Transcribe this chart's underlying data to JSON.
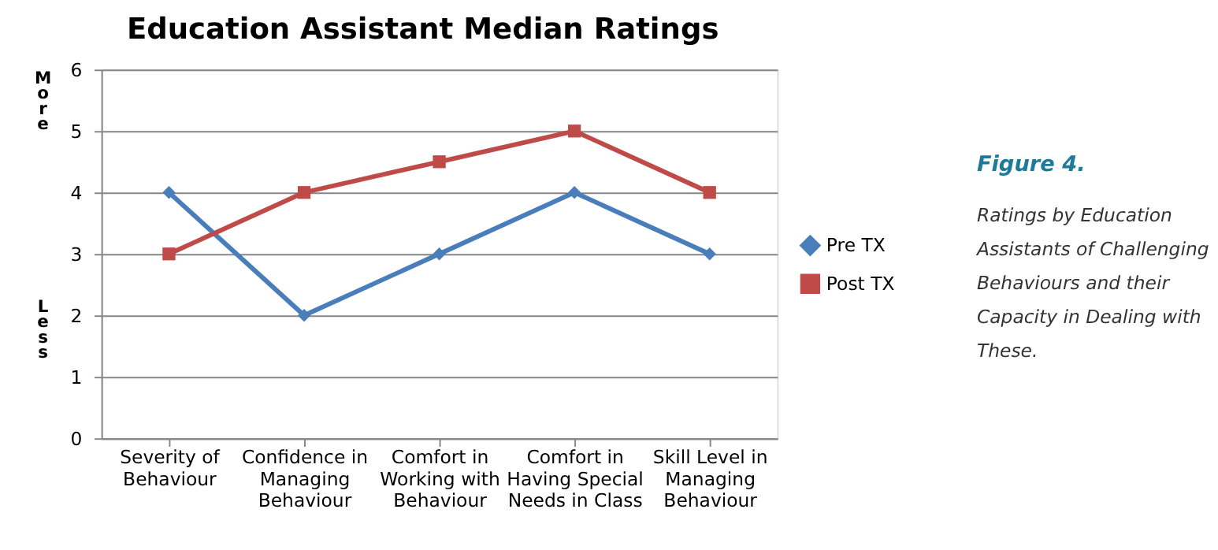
{
  "chart_data": {
    "type": "line",
    "title": "Education Assistant  Median Ratings",
    "categories": [
      "Severity of Behaviour",
      "Confidence in Managing Behaviour",
      "Comfort in Working with Behaviour",
      "Comfort in Having Special Needs in Class",
      "Skill Level in Managing Behaviour"
    ],
    "series": [
      {
        "name": "Pre  TX",
        "color": "#4a7ebb",
        "marker": "diamond",
        "values": [
          4,
          2,
          3,
          4,
          3
        ]
      },
      {
        "name": "Post TX",
        "color": "#be4b48",
        "marker": "square",
        "values": [
          3,
          4,
          4.5,
          5,
          4
        ]
      }
    ],
    "ylim": [
      0,
      6
    ],
    "yticks": [
      0,
      1,
      2,
      3,
      4,
      5,
      6
    ],
    "grid": "y",
    "legend": "right",
    "annotations": [
      "More",
      "Less",
      "Figure 4.",
      "Ratings by Education Assistants of Challenging Behaviours and their Capacity in Dealing with These."
    ]
  }
}
